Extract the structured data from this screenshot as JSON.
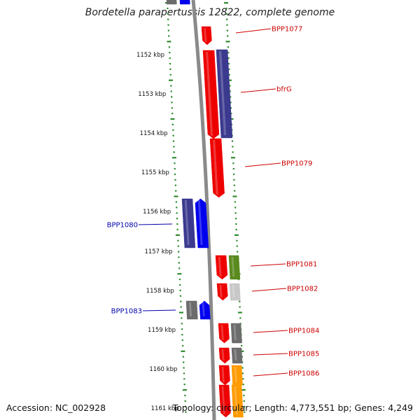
{
  "title": "Bordetella parapertussis 12822, complete genome",
  "accession_label": "Accession: NC_002928",
  "topology_label": "Topology: circular; Length: 4,773,551 bp; Genes: 4,249",
  "colors": {
    "red": "#ee0000",
    "navy": "#3b3a8f",
    "blue": "#0000ee",
    "grey": "#6c6c6c",
    "lightgrey": "#c8c8c8",
    "olive": "#5a8a1e",
    "orange": "#ff9a00",
    "backbone": "#8a8a8a",
    "tick": "#2e8b2e",
    "label_red": "#cc0000",
    "label_blue": "#0000aa"
  },
  "scale_labels": [
    "1152 kbp",
    "1153 kbp",
    "1154 kbp",
    "1155 kbp",
    "1156 kbp",
    "1157 kbp",
    "1158 kbp",
    "1159 kbp",
    "1160 kbp",
    "1161 kbp"
  ],
  "gene_labels": [
    {
      "name": "BPP1077",
      "side": "right"
    },
    {
      "name": "bfrG",
      "side": "right"
    },
    {
      "name": "BPP1079",
      "side": "right"
    },
    {
      "name": "BPP1080",
      "side": "left"
    },
    {
      "name": "BPP1081",
      "side": "right"
    },
    {
      "name": "BPP1082",
      "side": "right"
    },
    {
      "name": "BPP1083",
      "side": "left"
    },
    {
      "name": "BPP1084",
      "side": "right"
    },
    {
      "name": "BPP1085",
      "side": "right"
    },
    {
      "name": "BPP1086",
      "side": "right"
    }
  ]
}
